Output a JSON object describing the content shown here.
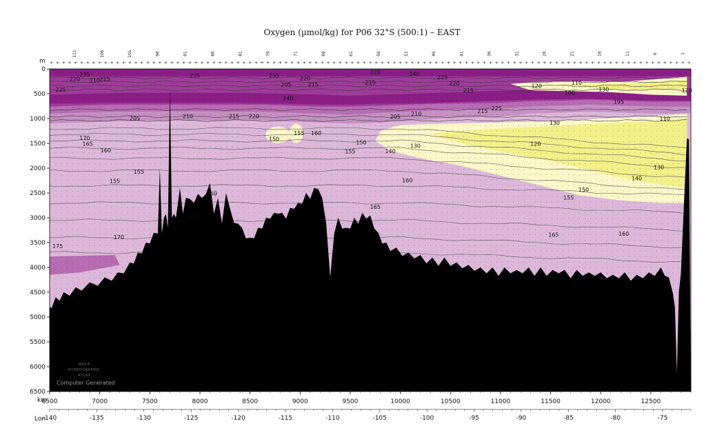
{
  "title": "Oxygen (µmol/kg) for P06 32°S (500:1) – EAST",
  "chart_data": {
    "type": "heatmap",
    "title": "Oxygen (µmol/kg) for P06 32°S (500:1) – EAST",
    "xlabel": "km",
    "ylabel": "m",
    "x2label": "Lon",
    "xlim": [
      6500,
      12900
    ],
    "ylim": [
      6500,
      0
    ],
    "x_ticks": [
      "6500",
      "7000",
      "7500",
      "8000",
      "8500",
      "9000",
      "9500",
      "10000",
      "10500",
      "11000",
      "11500",
      "12000",
      "12500"
    ],
    "y_ticks": [
      "0",
      "500",
      "1000",
      "1500",
      "2000",
      "2500",
      "3000",
      "3500",
      "4000",
      "4500",
      "5000",
      "5500",
      "6000",
      "6500"
    ],
    "lon_ticks": [
      "-140",
      "-135",
      "-130",
      "-125",
      "-120",
      "-115",
      "-110",
      "-105",
      "-100",
      "-95",
      "-90",
      "-85",
      "-80",
      "-75"
    ],
    "station_labels": [
      "111",
      "106",
      "101",
      "96",
      "91",
      "86",
      "81",
      "76",
      "71",
      "66",
      "61",
      "56",
      "51",
      "46",
      "41",
      "36",
      "31",
      "26",
      "21",
      "16",
      "11",
      "6",
      "1"
    ],
    "colors": {
      "gt_200": "#8a1e86",
      "190_200": "#9f3c9a",
      "180_190": "#b76bb2",
      "170_180": "#c690c2",
      "150_170": "#dcb7da",
      "130_150": "#fbf7c8",
      "lt_130": "#f3f08a",
      "bathymetry": "#000000"
    },
    "contour_labels": [
      {
        "value": "225",
        "km": 6610,
        "depth": 420
      },
      {
        "value": "220",
        "km": 6750,
        "depth": 200
      },
      {
        "value": "235",
        "km": 6850,
        "depth": 110
      },
      {
        "value": "210",
        "km": 6950,
        "depth": 230
      },
      {
        "value": "215",
        "km": 7050,
        "depth": 200
      },
      {
        "value": "235",
        "km": 7950,
        "depth": 130
      },
      {
        "value": "235",
        "km": 8740,
        "depth": 130
      },
      {
        "value": "205",
        "km": 8860,
        "depth": 310
      },
      {
        "value": "240",
        "km": 8880,
        "depth": 590
      },
      {
        "value": "220",
        "km": 9050,
        "depth": 190
      },
      {
        "value": "215",
        "km": 9130,
        "depth": 310
      },
      {
        "value": "220",
        "km": 9750,
        "depth": 60
      },
      {
        "value": "215",
        "km": 9700,
        "depth": 270
      },
      {
        "value": "240",
        "km": 10140,
        "depth": 100
      },
      {
        "value": "225",
        "km": 10420,
        "depth": 170
      },
      {
        "value": "220",
        "km": 10540,
        "depth": 290
      },
      {
        "value": "215",
        "km": 10680,
        "depth": 430
      },
      {
        "value": "120",
        "km": 11360,
        "depth": 340
      },
      {
        "value": "100",
        "km": 11690,
        "depth": 480
      },
      {
        "value": "110",
        "km": 11760,
        "depth": 280
      },
      {
        "value": "130",
        "km": 12030,
        "depth": 410
      },
      {
        "value": "195",
        "km": 12180,
        "depth": 660
      },
      {
        "value": "120",
        "km": 12860,
        "depth": 430
      },
      {
        "value": "205",
        "km": 7350,
        "depth": 990
      },
      {
        "value": "210",
        "km": 7880,
        "depth": 950
      },
      {
        "value": "215",
        "km": 8340,
        "depth": 950
      },
      {
        "value": "220",
        "km": 8540,
        "depth": 950
      },
      {
        "value": "205",
        "km": 9950,
        "depth": 960
      },
      {
        "value": "210",
        "km": 10160,
        "depth": 900
      },
      {
        "value": "215",
        "km": 10820,
        "depth": 850
      },
      {
        "value": "225",
        "km": 10960,
        "depth": 790
      },
      {
        "value": "130",
        "km": 11540,
        "depth": 1080
      },
      {
        "value": "110",
        "km": 12640,
        "depth": 1000
      },
      {
        "value": "170",
        "km": 6850,
        "depth": 1390
      },
      {
        "value": "165",
        "km": 6880,
        "depth": 1510
      },
      {
        "value": "160",
        "km": 7060,
        "depth": 1640
      },
      {
        "value": "150",
        "km": 8740,
        "depth": 1410
      },
      {
        "value": "155",
        "km": 8990,
        "depth": 1290
      },
      {
        "value": "160",
        "km": 9160,
        "depth": 1290
      },
      {
        "value": "155",
        "km": 9500,
        "depth": 1660
      },
      {
        "value": "150",
        "km": 9610,
        "depth": 1480
      },
      {
        "value": "140",
        "km": 9900,
        "depth": 1650
      },
      {
        "value": "130",
        "km": 10150,
        "depth": 1550
      },
      {
        "value": "120",
        "km": 11350,
        "depth": 1510
      },
      {
        "value": "130",
        "km": 12580,
        "depth": 1980
      },
      {
        "value": "140",
        "km": 12360,
        "depth": 2200
      },
      {
        "value": "150",
        "km": 11830,
        "depth": 2430
      },
      {
        "value": "155",
        "km": 11680,
        "depth": 2590
      },
      {
        "value": "160",
        "km": 10070,
        "depth": 2240
      },
      {
        "value": "165",
        "km": 9750,
        "depth": 2780
      },
      {
        "value": "160",
        "km": 8120,
        "depth": 2510
      },
      {
        "value": "163",
        "km": 7930,
        "depth": 2960
      },
      {
        "value": "155",
        "km": 7150,
        "depth": 2260
      },
      {
        "value": "155",
        "km": 7390,
        "depth": 2070
      },
      {
        "value": "170",
        "km": 7190,
        "depth": 3390
      },
      {
        "value": "175",
        "km": 6580,
        "depth": 3570
      },
      {
        "value": "165",
        "km": 11530,
        "depth": 3340
      },
      {
        "value": "160",
        "km": 12230,
        "depth": 3320
      }
    ],
    "logo_text": [
      "WOCE",
      "HYDROGRAPHIC",
      "ATLAS"
    ],
    "footer_text": "Computer Generated"
  }
}
